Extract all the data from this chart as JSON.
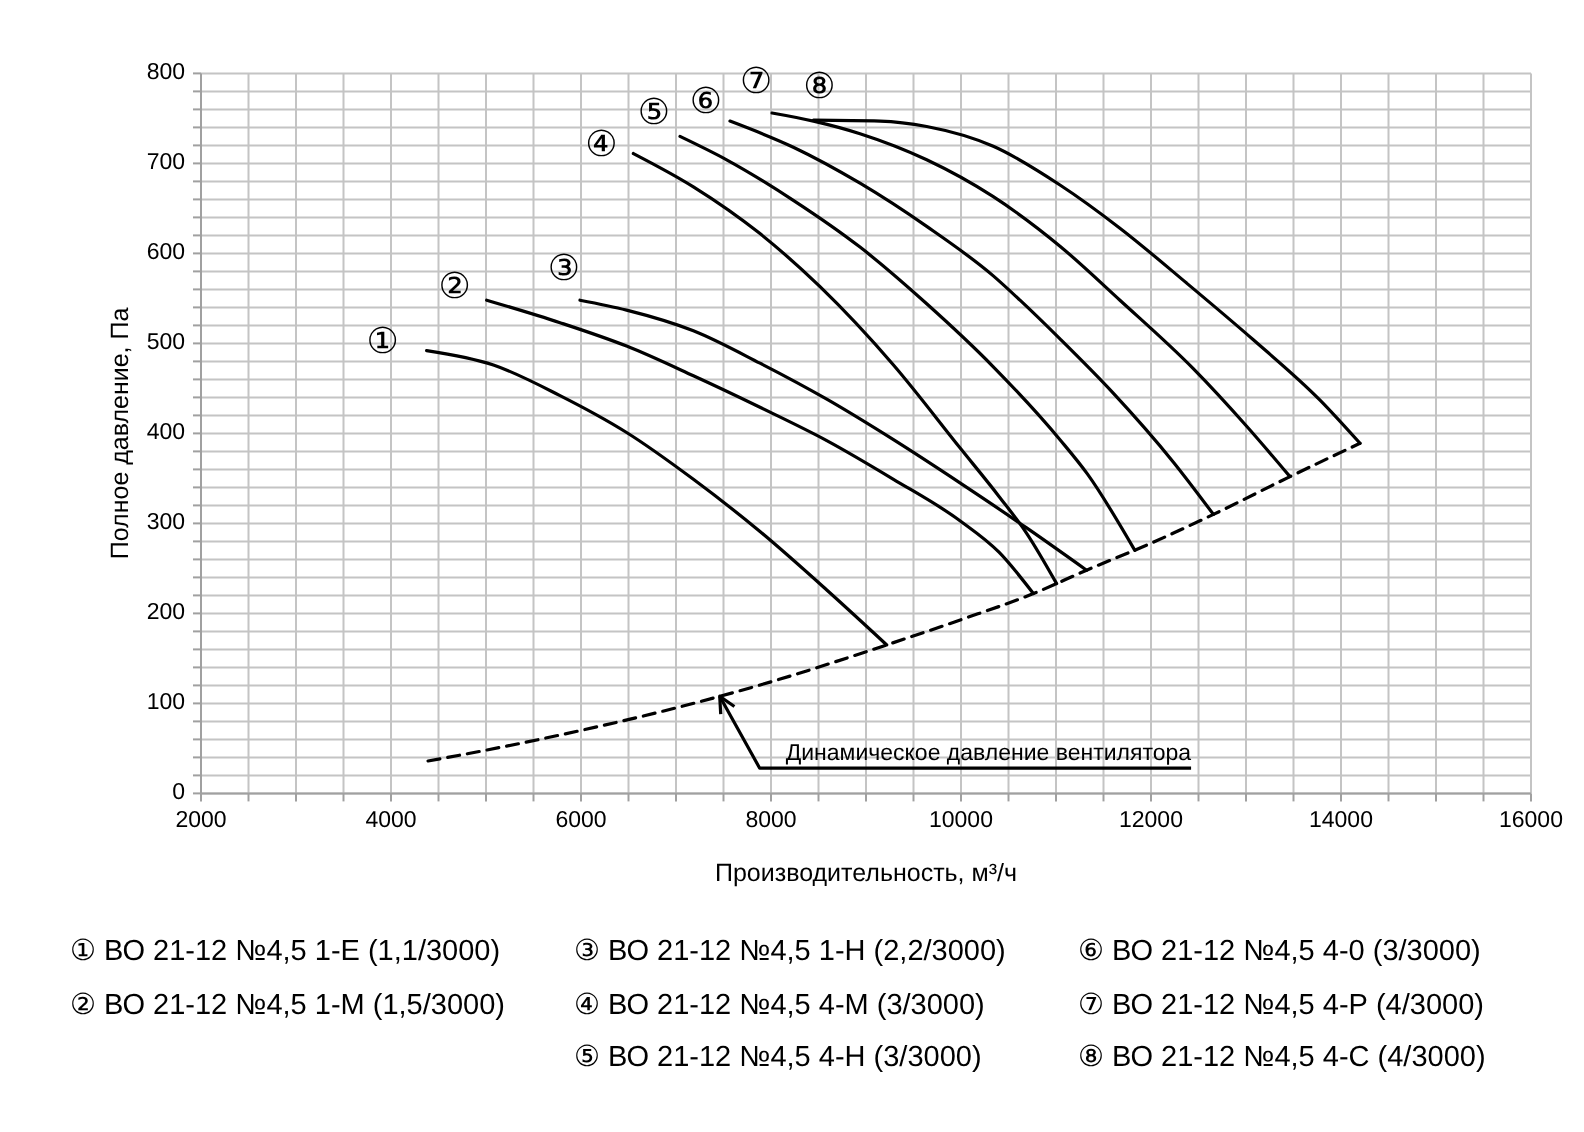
{
  "chart_data": {
    "type": "line",
    "xlabel": "Производительность, м³/ч",
    "ylabel": "Полное давление, Па",
    "xlim": [
      2000,
      16000
    ],
    "ylim": [
      0,
      800
    ],
    "xticks": [
      2000,
      {
        "value": 2500,
        "label": null
      },
      {
        "value": 3000,
        "label": null
      },
      {
        "value": 3500,
        "label": null
      },
      4000,
      {
        "value": 4500,
        "label": null
      },
      {
        "value": 5000,
        "label": null
      },
      {
        "value": 5500,
        "label": null
      },
      6000,
      {
        "value": 6500,
        "label": null
      },
      {
        "value": 7000,
        "label": null
      },
      {
        "value": 7500,
        "label": null
      },
      8000,
      {
        "value": 8500,
        "label": null
      },
      {
        "value": 9000,
        "label": null
      },
      {
        "value": 9500,
        "label": null
      },
      10000,
      {
        "value": 10500,
        "label": null
      },
      {
        "value": 11000,
        "label": null
      },
      {
        "value": 11500,
        "label": null
      },
      12000,
      {
        "value": 12500,
        "label": null
      },
      {
        "value": 13000,
        "label": null
      },
      {
        "value": 13500,
        "label": null
      },
      14000,
      {
        "value": 14500,
        "label": null
      },
      {
        "value": 15000,
        "label": null
      },
      {
        "value": 15500,
        "label": null
      },
      16000
    ],
    "yticks": [
      0,
      {
        "value": 20,
        "label": null
      },
      {
        "value": 40,
        "label": null
      },
      {
        "value": 60,
        "label": null
      },
      {
        "value": 80,
        "label": null
      },
      100,
      {
        "value": 120,
        "label": null
      },
      {
        "value": 140,
        "label": null
      },
      {
        "value": 160,
        "label": null
      },
      {
        "value": 180,
        "label": null
      },
      200,
      {
        "value": 220,
        "label": null
      },
      {
        "value": 240,
        "label": null
      },
      {
        "value": 260,
        "label": null
      },
      {
        "value": 280,
        "label": null
      },
      300,
      {
        "value": 320,
        "label": null
      },
      {
        "value": 340,
        "label": null
      },
      {
        "value": 360,
        "label": null
      },
      {
        "value": 380,
        "label": null
      },
      400,
      {
        "value": 420,
        "label": null
      },
      {
        "value": 440,
        "label": null
      },
      {
        "value": 460,
        "label": null
      },
      {
        "value": 480,
        "label": null
      },
      500,
      {
        "value": 520,
        "label": null
      },
      {
        "value": 540,
        "label": null
      },
      {
        "value": 560,
        "label": null
      },
      {
        "value": 580,
        "label": null
      },
      600,
      {
        "value": 620,
        "label": null
      },
      {
        "value": 640,
        "label": null
      },
      {
        "value": 660,
        "label": null
      },
      {
        "value": 680,
        "label": null
      },
      700,
      {
        "value": 720,
        "label": null
      },
      {
        "value": 740,
        "label": null
      },
      {
        "value": 760,
        "label": null
      },
      {
        "value": 780,
        "label": null
      },
      800
    ],
    "grid": true,
    "marker": "none",
    "line_style": "solid",
    "series": [
      {
        "name": "①",
        "color": "#000000",
        "x": [
          4375,
          5078,
          5779,
          6480,
          7183,
          7884,
          8587,
          9218
        ],
        "values": [
          492,
          476,
          442,
          401,
          349,
          291,
          226,
          165
        ]
      },
      {
        "name": "②",
        "color": "#000000",
        "x": [
          5007,
          5779,
          6480,
          7183,
          7884,
          8587,
          9289,
          9989,
          10400,
          10762
        ],
        "values": [
          548,
          523,
          497,
          464,
          429,
          392,
          349,
          303,
          268,
          222
        ]
      },
      {
        "name": "③",
        "color": "#000000",
        "x": [
          5989,
          6480,
          7183,
          7884,
          8587,
          9289,
          9989,
          10691,
          11322
        ],
        "values": [
          548,
          537,
          514,
          478,
          438,
          393,
          345,
          295,
          248
        ]
      },
      {
        "name": "④",
        "color": "#000000",
        "x": [
          6551,
          7183,
          7884,
          8516,
          9289,
          9989,
          10400,
          10691,
          11007
        ],
        "values": [
          711,
          674,
          622,
          563,
          476,
          384,
          330,
          289,
          233
        ]
      },
      {
        "name": "⑤",
        "color": "#000000",
        "x": [
          7042,
          7533,
          8235,
          8937,
          9639,
          10340,
          11042,
          11330,
          11830
        ],
        "values": [
          730,
          704,
          659,
          607,
          544,
          474,
          393,
          355,
          270
        ]
      },
      {
        "name": "⑥",
        "color": "#000000",
        "x": [
          7568,
          8235,
          8937,
          9639,
          10340,
          10621,
          11042,
          11600,
          12236,
          12657
        ],
        "values": [
          747,
          718,
          678,
          630,
          575,
          548,
          505,
          445,
          368,
          310
        ]
      },
      {
        "name": "⑦",
        "color": "#000000",
        "x": [
          8011,
          8447,
          8937,
          9639,
          10340,
          11042,
          11673,
          12445,
          13007,
          13463
        ],
        "values": [
          756,
          747,
          733,
          704,
          663,
          608,
          548,
          472,
          408,
          352
        ]
      },
      {
        "name": "⑧",
        "color": "#000000",
        "x": [
          8447,
          9148,
          9639,
          10340,
          11042,
          11673,
          12375,
          13077,
          13779,
          14200
        ],
        "values": [
          748,
          747,
          741,
          719,
          676,
          628,
          567,
          504,
          437,
          389
        ]
      },
      {
        "color": "#000000",
        "line_style": "dashed",
        "x": [
          4390,
          5000,
          6000,
          7000,
          8000,
          9218,
          10000,
          10762,
          11322,
          12000,
          12657,
          13463,
          14200
        ],
        "values": [
          36,
          48,
          70,
          95,
          124,
          165,
          193,
          222,
          248,
          278,
          310,
          352,
          389
        ]
      }
    ],
    "annotations": [
      {
        "text": "Динамическое давление вентилятора",
        "x": 7460,
        "y": 108
      },
      "① ВО 21-12 №4,5 1-Е (1,1/3000)",
      "② ВО 21-12 №4,5 1-М (1,5/3000)",
      "③ ВО 21-12 №4,5 1-Н (2,2/3000)",
      "④ ВО 21-12 №4,5 4-М (3/3000)",
      "⑤ ВО 21-12 №4,5 4-Н (3/3000)",
      "⑥ ВО 21-12 №4,5 4-0 (3/3000)",
      "⑦ ВО 21-12 №4,5 4-Р (4/3000)",
      "⑧ ВО 21-12 №4,5 4-С (4/3000)"
    ]
  }
}
